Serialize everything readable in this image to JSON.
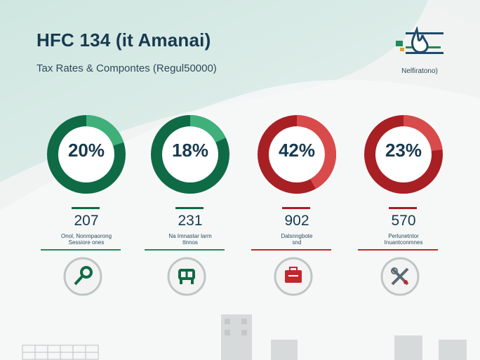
{
  "header": {
    "title": "HFC 134 (it Amanai)",
    "subtitle": "Tax Rates & Compontes (Regul50000)"
  },
  "logo": {
    "label": "Nelfiratono)",
    "icon": "flame-logo-icon"
  },
  "colors": {
    "green": "#1f8a5c",
    "green_dark": "#0e6b45",
    "red": "#c0282c",
    "red_dark": "#a81f24",
    "ink": "#173a4f"
  },
  "cards": [
    {
      "percent": "20%",
      "fraction": 0.2,
      "color": "#1f8a5c",
      "value": "207",
      "label_lines": [
        "Onol, Nonmpaorong ",
        "Sessiore ones"
      ],
      "icon": "key-icon"
    },
    {
      "percent": "18%",
      "fraction": 0.18,
      "color": "#1f8a5c",
      "value": "231",
      "label_lines": [
        "Na Imnastar larm",
        "ttnnos"
      ],
      "icon": "chair-icon"
    },
    {
      "percent": "42%",
      "fraction": 0.42,
      "color": "#c0282c",
      "value": "902",
      "label_lines": [
        "Dalsnngbote",
        "snd"
      ],
      "icon": "briefcase-icon"
    },
    {
      "percent": "23%",
      "fraction": 0.23,
      "color": "#c0282c",
      "value": "570",
      "label_lines": [
        "Perlunetntor",
        "Inuantconmnes"
      ],
      "icon": "tools-icon"
    }
  ]
}
